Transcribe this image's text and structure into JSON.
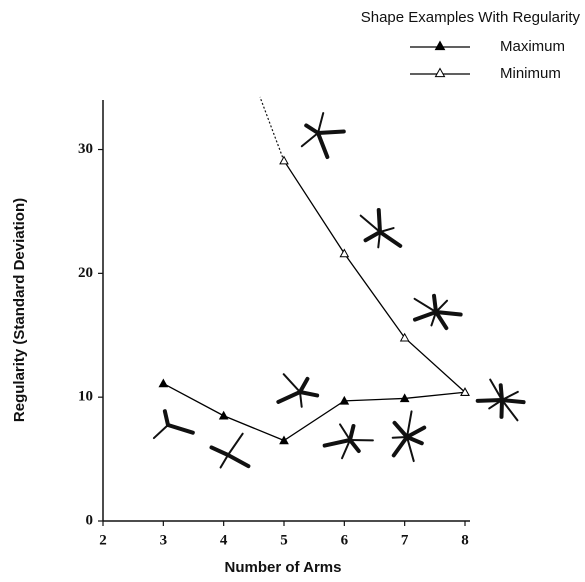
{
  "chart_data": {
    "type": "line",
    "legend_title": "Shape Examples With Regularity",
    "x_label": "Number of Arms",
    "y_label": "Regularity (Standard Deviation)",
    "series": [
      {
        "name": "Maximum",
        "color": "#000000",
        "marker": "filled-triangle",
        "x": [
          3,
          4,
          5,
          6,
          7,
          8
        ],
        "values": [
          11.1,
          8.5,
          6.5,
          9.7,
          9.9,
          10.4
        ]
      },
      {
        "name": "Minimum",
        "color": "#000000",
        "marker": "open-triangle",
        "x": [
          5,
          6,
          7,
          8
        ],
        "values": [
          29.1,
          21.6,
          14.8,
          10.4
        ]
      }
    ],
    "xlim": [
      2,
      8
    ],
    "xticks": [
      2,
      3,
      4,
      5,
      6,
      7,
      8
    ],
    "ylim": [
      0,
      34
    ],
    "yticks": [
      0,
      10,
      20,
      30
    ],
    "grid": false,
    "legend": "top-right"
  }
}
